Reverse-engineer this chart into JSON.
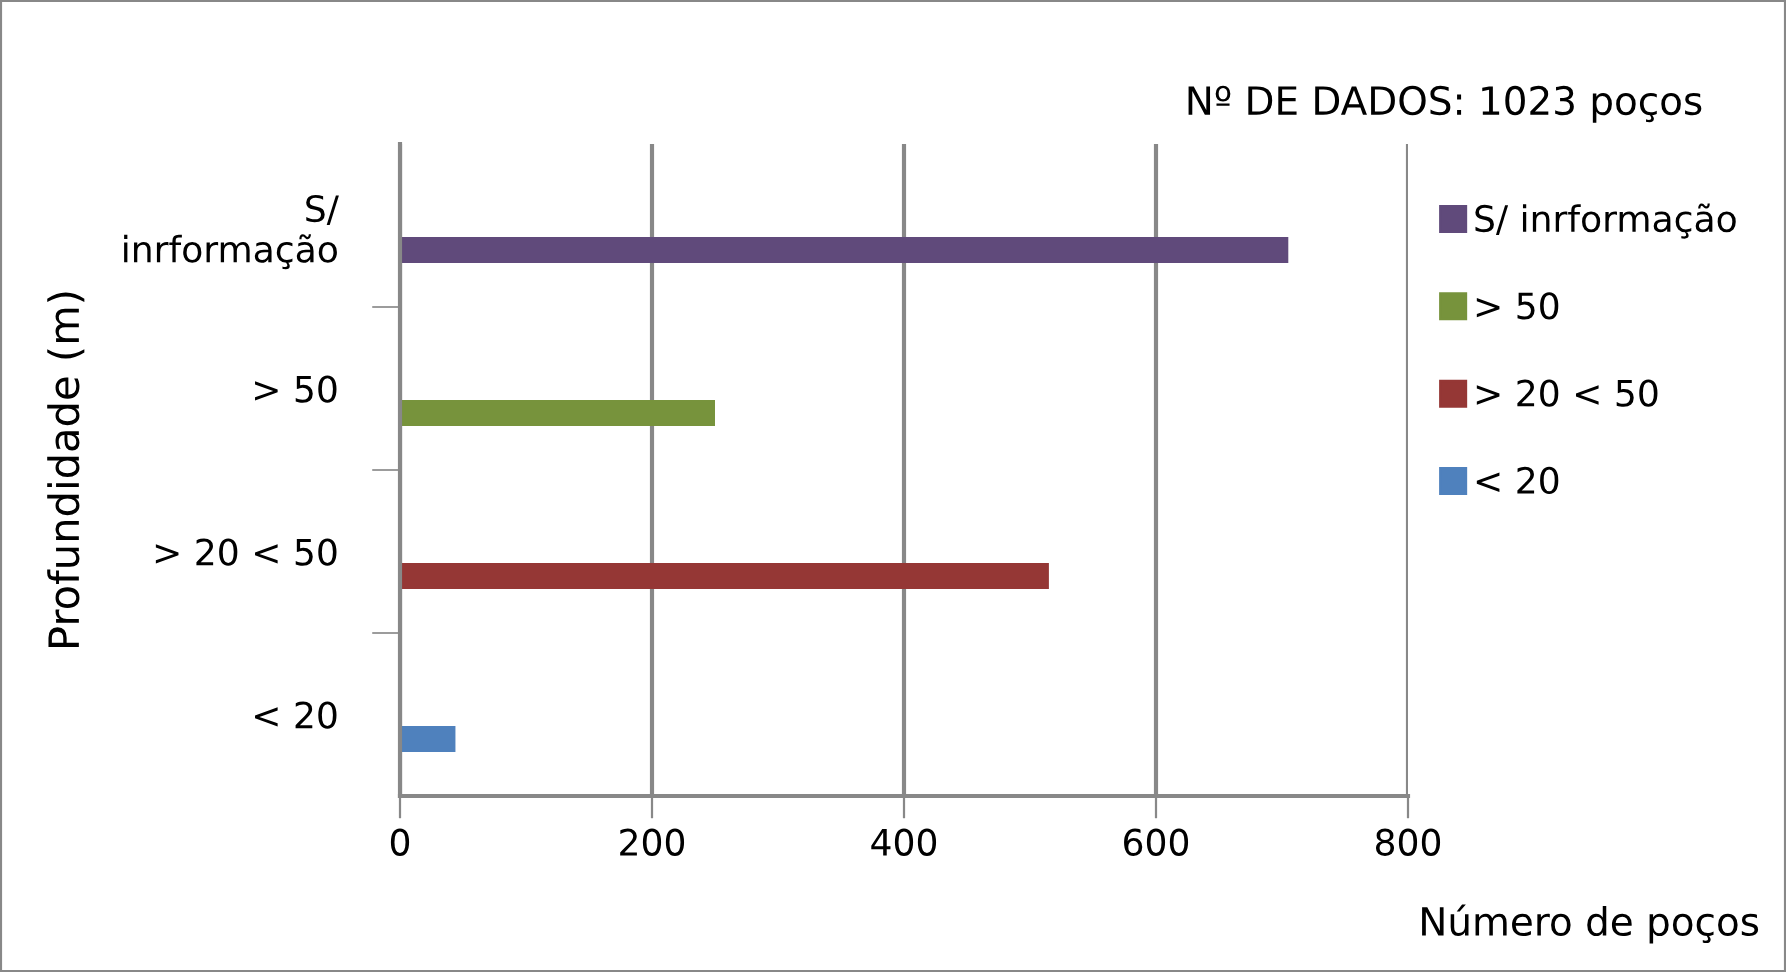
{
  "chart_data": {
    "type": "bar",
    "orientation": "horizontal",
    "ylabel": "Profundidade (m)",
    "xlabel": "Número de poços",
    "annotations": [
      "Nº DE DADOS: 1023 poços"
    ],
    "categories": [
      "S/ inrformação",
      "> 50",
      "> 20 < 50",
      "< 20"
    ],
    "series": [
      {
        "name": "S/ inrformação",
        "color": "#604a7b",
        "values": [
          705,
          null,
          null,
          null
        ]
      },
      {
        "name": "> 50",
        "color": "#77933c",
        "values": [
          null,
          250,
          null,
          null
        ]
      },
      {
        "name": "> 20 < 50",
        "color": "#953735",
        "values": [
          null,
          null,
          515,
          null
        ]
      },
      {
        "name": "< 20",
        "color": "#4f81bd",
        "values": [
          null,
          null,
          null,
          44
        ]
      }
    ],
    "xlim": [
      0,
      800
    ],
    "xticks": [
      0,
      200,
      400,
      600,
      800
    ],
    "grid": "x",
    "legend": "right"
  }
}
